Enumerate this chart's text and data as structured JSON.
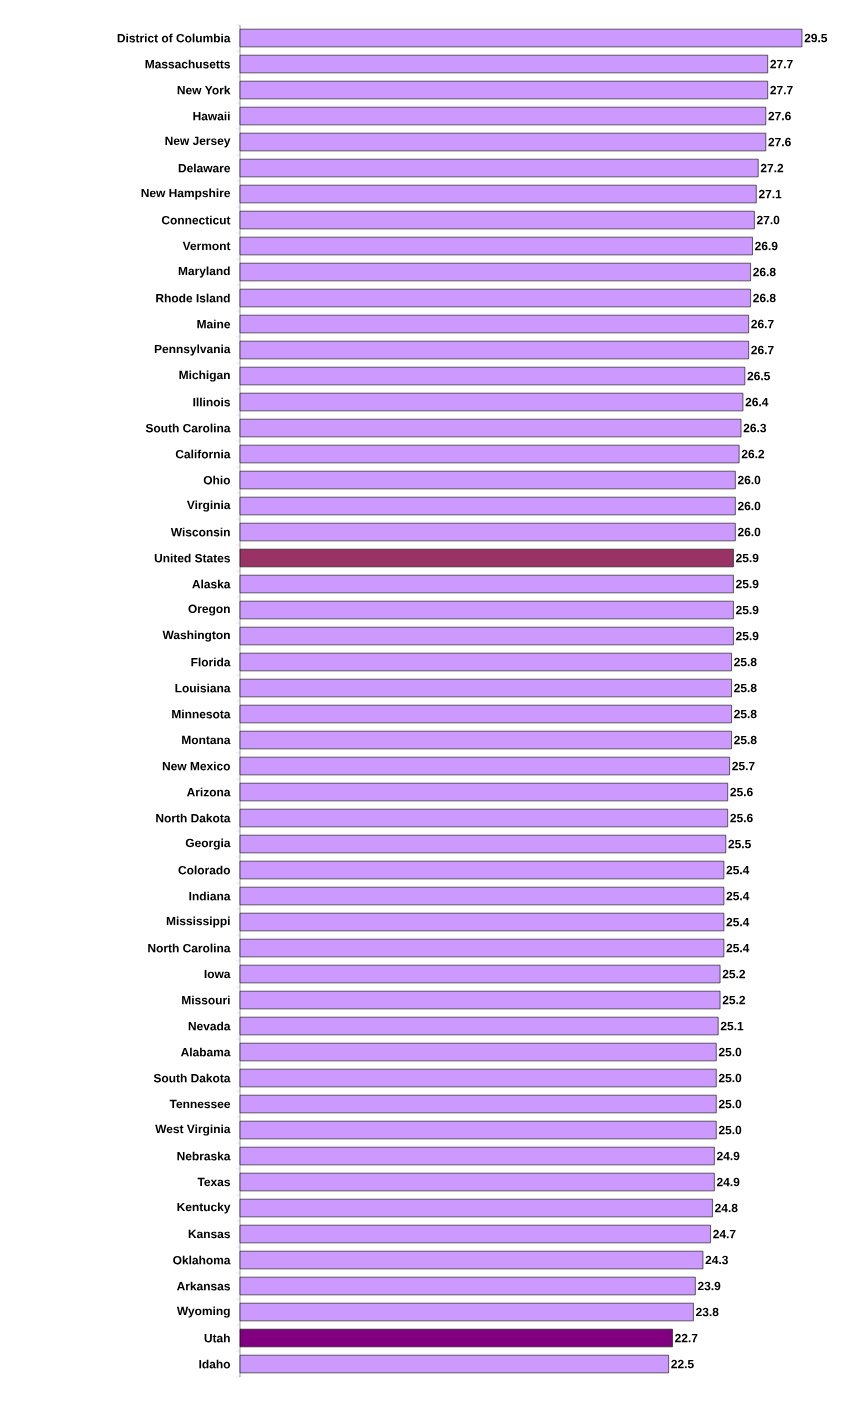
{
  "chart_data": {
    "type": "bar",
    "orientation": "horizontal",
    "value_labels": [
      "29.5",
      "27.7",
      "27.7",
      "27.6",
      "27.6",
      "27.2",
      "27.1",
      "27.0",
      "26.9",
      "26.8",
      "26.8",
      "26.7",
      "26.7",
      "26.5",
      "26.4",
      "26.3",
      "26.2",
      "26.0",
      "26.0",
      "26.0",
      "25.9",
      "25.9",
      "25.9",
      "25.9",
      "25.8",
      "25.8",
      "25.8",
      "25.8",
      "25.7",
      "25.6",
      "25.6",
      "25.5",
      "25.4",
      "25.4",
      "25.4",
      "25.4",
      "25.2",
      "25.2",
      "25.1",
      "25.0",
      "25.0",
      "25.0",
      "25.0",
      "24.9",
      "24.9",
      "24.8",
      "24.7",
      "24.3",
      "23.9",
      "23.8",
      "22.7",
      "22.5"
    ],
    "xlim": [
      0,
      29.5
    ],
    "categories": [
      "District of Columbia",
      "Massachusetts",
      "New York",
      "Hawaii",
      "New Jersey",
      "Delaware",
      "New Hampshire",
      "Connecticut",
      "Vermont",
      "Maryland",
      "Rhode Island",
      "Maine",
      "Pennsylvania",
      "Michigan",
      "Illinois",
      "South Carolina",
      "California",
      "Ohio",
      "Virginia",
      "Wisconsin",
      "United States",
      "Alaska",
      "Oregon",
      "Washington",
      "Florida",
      "Louisiana",
      "Minnesota",
      "Montana",
      "New Mexico",
      "Arizona",
      "North Dakota",
      "Georgia",
      "Colorado",
      "Indiana",
      "Mississippi",
      "North Carolina",
      "Iowa",
      "Missouri",
      "Nevada",
      "Alabama",
      "South Dakota",
      "Tennessee",
      "West Virginia",
      "Nebraska",
      "Texas",
      "Kentucky",
      "Kansas",
      "Oklahoma",
      "Arkansas",
      "Wyoming",
      "Utah",
      "Idaho"
    ],
    "values": [
      29.5,
      27.7,
      27.7,
      27.6,
      27.6,
      27.2,
      27.1,
      27.0,
      26.9,
      26.8,
      26.8,
      26.7,
      26.7,
      26.5,
      26.4,
      26.3,
      26.2,
      26.0,
      26.0,
      26.0,
      25.9,
      25.9,
      25.9,
      25.9,
      25.8,
      25.8,
      25.8,
      25.8,
      25.7,
      25.6,
      25.6,
      25.5,
      25.4,
      25.4,
      25.4,
      25.4,
      25.2,
      25.2,
      25.1,
      25.0,
      25.0,
      25.0,
      25.0,
      24.9,
      24.9,
      24.8,
      24.7,
      24.3,
      23.9,
      23.8,
      22.7,
      22.5
    ],
    "colors": [
      "#cc99ff",
      "#cc99ff",
      "#cc99ff",
      "#cc99ff",
      "#cc99ff",
      "#cc99ff",
      "#cc99ff",
      "#cc99ff",
      "#cc99ff",
      "#cc99ff",
      "#cc99ff",
      "#cc99ff",
      "#cc99ff",
      "#cc99ff",
      "#cc99ff",
      "#cc99ff",
      "#cc99ff",
      "#cc99ff",
      "#cc99ff",
      "#cc99ff",
      "#993366",
      "#cc99ff",
      "#cc99ff",
      "#cc99ff",
      "#cc99ff",
      "#cc99ff",
      "#cc99ff",
      "#cc99ff",
      "#cc99ff",
      "#cc99ff",
      "#cc99ff",
      "#cc99ff",
      "#cc99ff",
      "#cc99ff",
      "#cc99ff",
      "#cc99ff",
      "#cc99ff",
      "#cc99ff",
      "#cc99ff",
      "#cc99ff",
      "#cc99ff",
      "#cc99ff",
      "#cc99ff",
      "#cc99ff",
      "#cc99ff",
      "#cc99ff",
      "#cc99ff",
      "#cc99ff",
      "#cc99ff",
      "#cc99ff",
      "#800080",
      "#cc99ff"
    ]
  }
}
